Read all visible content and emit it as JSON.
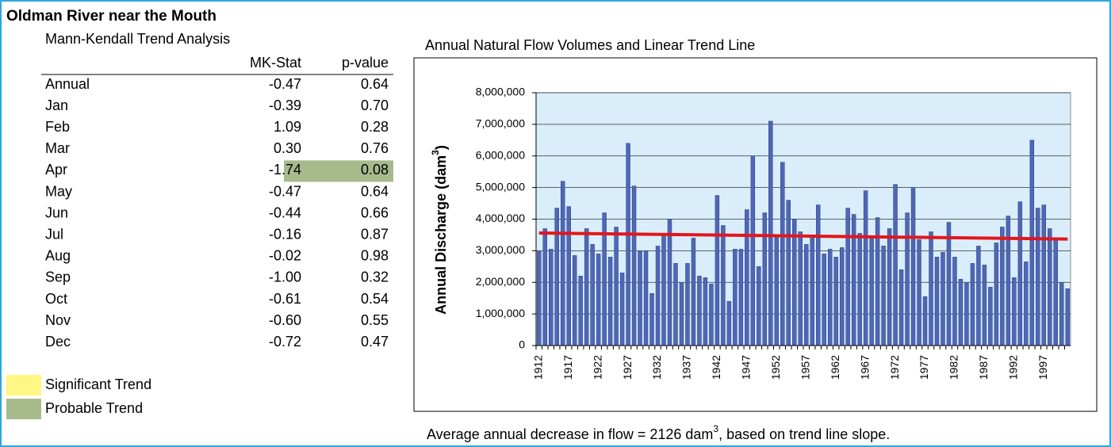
{
  "table": {
    "title": "Oldman River near the Mouth",
    "subtitle": "Mann-Kendall Trend Analysis",
    "columns": [
      "MK-Stat",
      "p-value"
    ],
    "rows": [
      {
        "cells": [
          "Annual",
          "-0.47",
          "0.64"
        ]
      },
      {
        "cells": [
          "Jan",
          "-0.39",
          "0.70"
        ]
      },
      {
        "cells": [
          "Feb",
          "1.09",
          "0.28"
        ]
      },
      {
        "cells": [
          "Mar",
          "0.30",
          "0.76"
        ]
      },
      {
        "cells": [
          "Apr",
          "-1.74",
          "0.08"
        ],
        "p_color": "#a7ba8c"
      },
      {
        "cells": [
          "May",
          "-0.47",
          "0.64"
        ]
      },
      {
        "cells": [
          "Jun",
          "-0.44",
          "0.66"
        ]
      },
      {
        "cells": [
          "Jul",
          "-0.16",
          "0.87"
        ]
      },
      {
        "cells": [
          "Aug",
          "-0.02",
          "0.98"
        ]
      },
      {
        "cells": [
          "Sep",
          "-1.00",
          "0.32"
        ]
      },
      {
        "cells": [
          "Oct",
          "-0.61",
          "0.54"
        ]
      },
      {
        "cells": [
          "Nov",
          "-0.60",
          "0.55"
        ]
      },
      {
        "cells": [
          "Dec",
          "-0.72",
          "0.47"
        ]
      }
    ],
    "legend": [
      {
        "label": "Significant Trend",
        "color": "#fff685"
      },
      {
        "label": "Probable Trend",
        "color": "#a7ba8c"
      }
    ]
  },
  "chart_data": {
    "type": "bar",
    "title": "Annual Natural Flow Volumes and Linear Trend Line",
    "y_label": {
      "text": "Annual Discharge (dam",
      "sup": "3",
      "end": ")"
    },
    "footnote": {
      "text": "Average annual decrease in flow = 2126 dam",
      "sup": "3",
      "end": ", based on trend line slope."
    },
    "categories": [
      "1912",
      null,
      null,
      null,
      null,
      "1917",
      null,
      null,
      null,
      null,
      "1922",
      null,
      null,
      null,
      null,
      "1927",
      null,
      null,
      null,
      null,
      "1932",
      null,
      null,
      null,
      null,
      "1937",
      null,
      null,
      null,
      null,
      "1942",
      null,
      null,
      null,
      null,
      "1947",
      null,
      null,
      null,
      null,
      "1952",
      null,
      null,
      null,
      null,
      "1957",
      null,
      null,
      null,
      null,
      "1962",
      null,
      null,
      null,
      null,
      "1967",
      null,
      null,
      null,
      null,
      "1972",
      null,
      null,
      null,
      null,
      "1977",
      null,
      null,
      null,
      null,
      "1982",
      null,
      null,
      null,
      null,
      "1987",
      null,
      null,
      null,
      null,
      "1992",
      null,
      null,
      null,
      null,
      "1997",
      null,
      null,
      null,
      null
    ],
    "values": [
      3000000,
      3700000,
      3050000,
      4350000,
      5200000,
      4400000,
      2850000,
      2200000,
      3700000,
      3200000,
      2900000,
      4200000,
      2800000,
      3750000,
      2300000,
      6400000,
      5050000,
      3000000,
      3000000,
      1650000,
      3150000,
      3500000,
      4000000,
      2600000,
      2000000,
      2600000,
      3400000,
      2200000,
      2150000,
      1950000,
      4750000,
      3800000,
      1400000,
      3050000,
      3050000,
      4300000,
      6000000,
      2500000,
      4200000,
      7100000,
      3450000,
      5800000,
      4600000,
      4000000,
      3600000,
      3200000,
      3500000,
      4450000,
      2900000,
      3050000,
      2800000,
      3100000,
      4350000,
      4150000,
      3550000,
      4900000,
      3400000,
      4050000,
      3150000,
      3700000,
      5100000,
      2400000,
      4200000,
      5000000,
      3350000,
      1550000,
      3600000,
      2800000,
      2950000,
      3900000,
      2800000,
      2100000,
      2000000,
      2600000,
      3150000,
      2550000,
      1850000,
      3250000,
      3750000,
      4100000,
      2150000,
      4550000,
      2650000,
      6500000,
      4350000,
      4450000,
      3700000,
      3350000,
      2000000,
      1800000
    ],
    "color": "#4f67b5",
    "plot_background": "#d9eefa",
    "trend": {
      "values": [
        3560000,
        3370000
      ],
      "color": "#e3161c"
    },
    "ylim": [
      0,
      8000000
    ],
    "yticks": [
      0,
      {
        "value": 1000000,
        "label": "1,000,000"
      },
      {
        "value": 2000000,
        "label": "2,000,000"
      },
      {
        "value": 3000000,
        "label": "3,000,000"
      },
      {
        "value": 4000000,
        "label": "4,000,000"
      },
      {
        "value": 5000000,
        "label": "5,000,000"
      },
      {
        "value": 6000000,
        "label": "6,000,000"
      },
      {
        "value": 7000000,
        "label": "7,000,000"
      },
      {
        "value": 8000000,
        "label": "8,000,000"
      }
    ],
    "grid": true
  }
}
